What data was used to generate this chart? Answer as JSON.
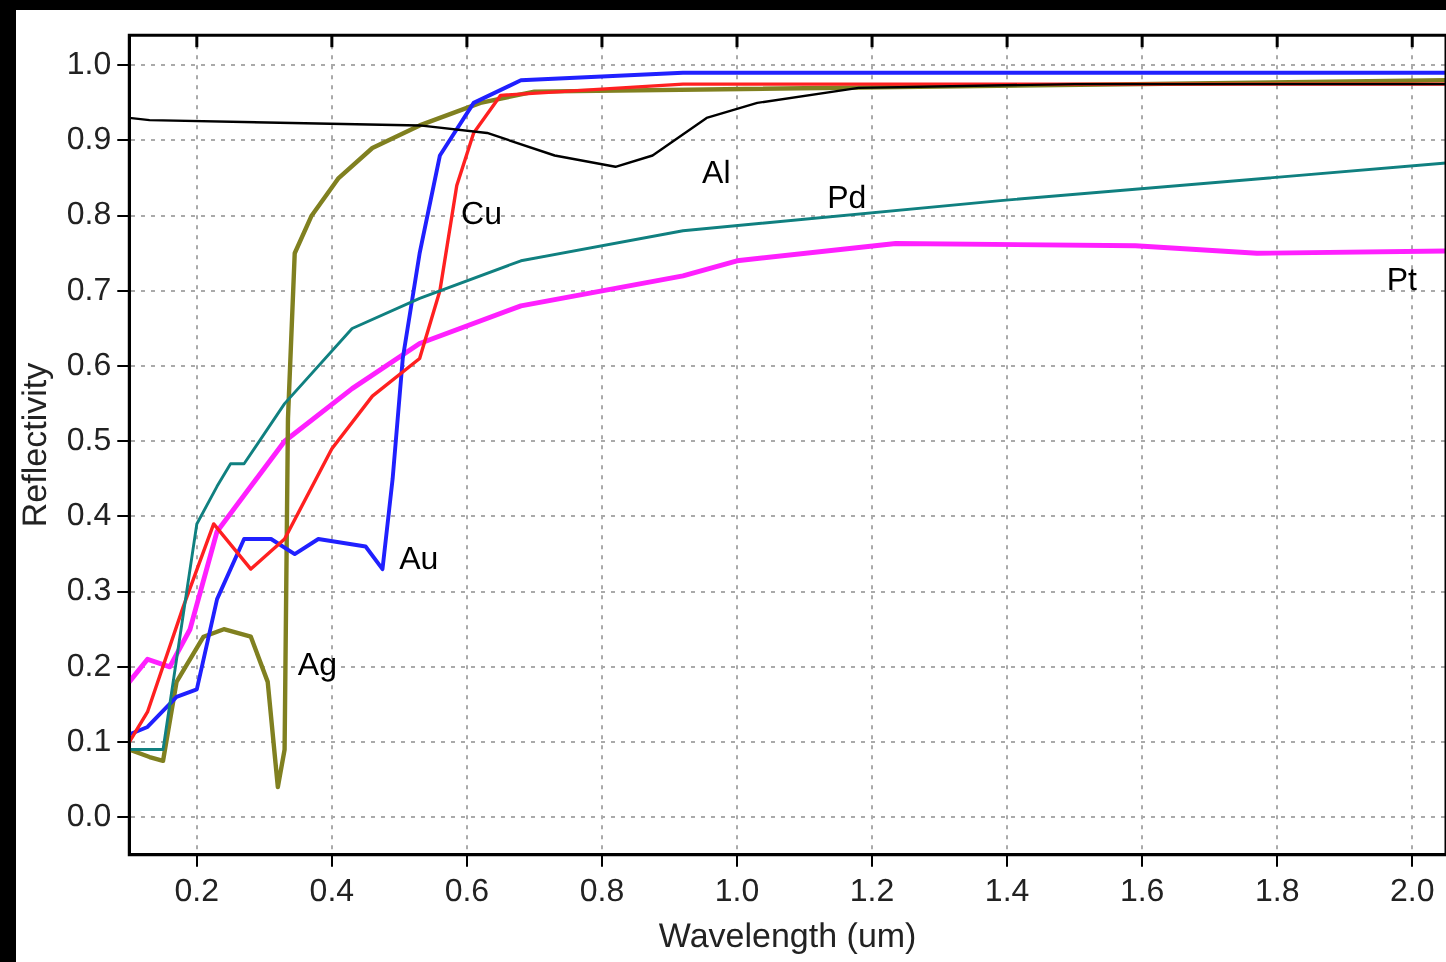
{
  "chart_data": {
    "type": "line",
    "xlabel": "Wavelength (um)",
    "ylabel": "Reflectivity",
    "xlim": [
      0.1,
      2.05
    ],
    "ylim": [
      -0.05,
      1.04
    ],
    "xticks": [
      {
        "value": 0.2,
        "label": "0.2"
      },
      {
        "value": 0.4,
        "label": "0.4"
      },
      {
        "value": 0.6,
        "label": "0.6"
      },
      {
        "value": 0.8,
        "label": "0.8"
      },
      {
        "value": 1.0,
        "label": "1.0"
      },
      {
        "value": 1.2,
        "label": "1.2"
      },
      {
        "value": 1.4,
        "label": "1.4"
      },
      {
        "value": 1.6,
        "label": "1.6"
      },
      {
        "value": 1.8,
        "label": "1.8"
      },
      {
        "value": 2.0,
        "label": "2.0"
      }
    ],
    "yticks": [
      {
        "value": 0,
        "label": "0.0"
      },
      {
        "value": 0.1,
        "label": "0.1"
      },
      {
        "value": 0.2,
        "label": "0.2"
      },
      {
        "value": 0.3,
        "label": "0.3"
      },
      {
        "value": 0.4,
        "label": "0.4"
      },
      {
        "value": 0.5,
        "label": "0.5"
      },
      {
        "value": 0.6,
        "label": "0.6"
      },
      {
        "value": 0.7,
        "label": "0.7"
      },
      {
        "value": 0.8,
        "label": "0.8"
      },
      {
        "value": 0.9,
        "label": "0.9"
      },
      {
        "value": 1.0,
        "label": "1.0"
      }
    ],
    "grid": true,
    "legend": false,
    "marker": "none",
    "line_style": "solid",
    "series": [
      {
        "name": "Al",
        "color": "#000000",
        "x": [
          0.1,
          0.13,
          0.53,
          0.63,
          0.73,
          0.82,
          0.875,
          0.955,
          1.03,
          1.18,
          1.5,
          2.05
        ],
        "values": [
          0.93,
          0.927,
          0.92,
          0.91,
          0.88,
          0.865,
          0.88,
          0.93,
          0.95,
          0.97,
          0.975,
          0.975
        ]
      },
      {
        "name": "Pd",
        "color": "#108080",
        "x": [
          0.1,
          0.15,
          0.2,
          0.23,
          0.25,
          0.27,
          0.33,
          0.43,
          0.53,
          0.68,
          0.92,
          1.39,
          2.05
        ],
        "values": [
          0.09,
          0.09,
          0.39,
          0.44,
          0.47,
          0.47,
          0.55,
          0.65,
          0.69,
          0.74,
          0.78,
          0.82,
          0.87
        ]
      },
      {
        "name": "Cu",
        "color": "#ff2020",
        "x": [
          0.1,
          0.127,
          0.18,
          0.225,
          0.28,
          0.33,
          0.4,
          0.46,
          0.53,
          0.56,
          0.585,
          0.61,
          0.65,
          0.92,
          2.05
        ],
        "values": [
          0.1,
          0.14,
          0.28,
          0.39,
          0.33,
          0.37,
          0.49,
          0.56,
          0.61,
          0.7,
          0.84,
          0.91,
          0.96,
          0.975,
          0.975
        ]
      },
      {
        "name": "Au",
        "color": "#2020ff",
        "x": [
          0.1,
          0.127,
          0.17,
          0.2,
          0.23,
          0.27,
          0.31,
          0.345,
          0.38,
          0.45,
          0.475,
          0.49,
          0.505,
          0.53,
          0.56,
          0.61,
          0.68,
          0.92,
          2.05
        ],
        "values": [
          0.11,
          0.12,
          0.16,
          0.17,
          0.29,
          0.37,
          0.37,
          0.35,
          0.37,
          0.36,
          0.33,
          0.45,
          0.61,
          0.75,
          0.88,
          0.95,
          0.98,
          0.99,
          0.99
        ]
      },
      {
        "name": "Ag",
        "color": "#808020",
        "x": [
          0.1,
          0.13,
          0.15,
          0.17,
          0.21,
          0.24,
          0.28,
          0.305,
          0.32,
          0.33,
          0.335,
          0.345,
          0.37,
          0.41,
          0.46,
          0.53,
          0.62,
          0.7,
          2.05
        ],
        "values": [
          0.09,
          0.08,
          0.075,
          0.18,
          0.24,
          0.25,
          0.24,
          0.18,
          0.04,
          0.09,
          0.53,
          0.75,
          0.8,
          0.85,
          0.89,
          0.92,
          0.95,
          0.965,
          0.98
        ]
      },
      {
        "name": "Pt",
        "color": "#ff20ff",
        "x": [
          0.1,
          0.127,
          0.16,
          0.19,
          0.23,
          0.33,
          0.43,
          0.53,
          0.68,
          0.92,
          1.0,
          1.235,
          1.59,
          1.77,
          2.05
        ],
        "values": [
          0.18,
          0.21,
          0.2,
          0.25,
          0.38,
          0.5,
          0.57,
          0.63,
          0.68,
          0.72,
          0.74,
          0.763,
          0.76,
          0.75,
          0.753
        ]
      }
    ]
  }
}
